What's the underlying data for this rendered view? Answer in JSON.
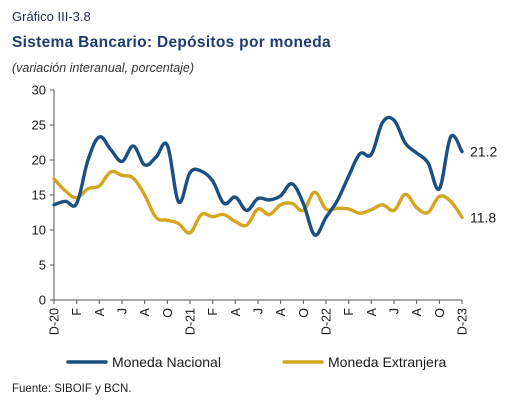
{
  "header": {
    "label": "Gráfico III-3.8",
    "title": "Sistema Bancario: Depósitos por moneda",
    "subtitle": "(variación interanual, porcentaje)"
  },
  "source": "Fuente: SIBOIF y BCN.",
  "colors": {
    "nacional": "#1b4f82",
    "extranjera": "#d4a520",
    "axis": "#555555"
  },
  "chart_data": {
    "type": "line",
    "ylim": [
      0,
      30
    ],
    "yticks": [
      0,
      5,
      10,
      15,
      20,
      25,
      30
    ],
    "x_tick_labels": [
      "D-20",
      "F",
      "A",
      "J",
      "A",
      "O",
      "D-21",
      "F",
      "A",
      "J",
      "A",
      "O",
      "D-22",
      "F",
      "A",
      "J",
      "A",
      "O",
      "D-23"
    ],
    "series": [
      {
        "name": "Moneda Nacional",
        "end_label": "21.2",
        "values": [
          13.6,
          14.1,
          13.8,
          20.0,
          23.3,
          21.5,
          19.8,
          22.0,
          19.3,
          20.4,
          22.1,
          14.0,
          18.2,
          18.4,
          17.0,
          13.8,
          14.7,
          12.8,
          14.5,
          14.3,
          14.9,
          16.6,
          13.8,
          9.3,
          11.8,
          14.2,
          17.7,
          20.9,
          20.8,
          25.4,
          25.7,
          22.4,
          21.0,
          19.6,
          15.9,
          23.3,
          21.2
        ]
      },
      {
        "name": "Moneda Extranjera",
        "end_label": "11.8",
        "values": [
          17.3,
          15.6,
          14.6,
          15.9,
          16.3,
          18.3,
          17.8,
          17.4,
          15.0,
          11.8,
          11.4,
          10.9,
          9.6,
          12.2,
          11.9,
          12.2,
          11.2,
          10.7,
          13.0,
          12.2,
          13.6,
          13.8,
          12.8,
          15.4,
          13.0,
          13.1,
          13.0,
          12.4,
          12.9,
          13.6,
          12.8,
          15.1,
          13.2,
          12.5,
          14.8,
          14.1,
          11.8
        ]
      }
    ]
  }
}
